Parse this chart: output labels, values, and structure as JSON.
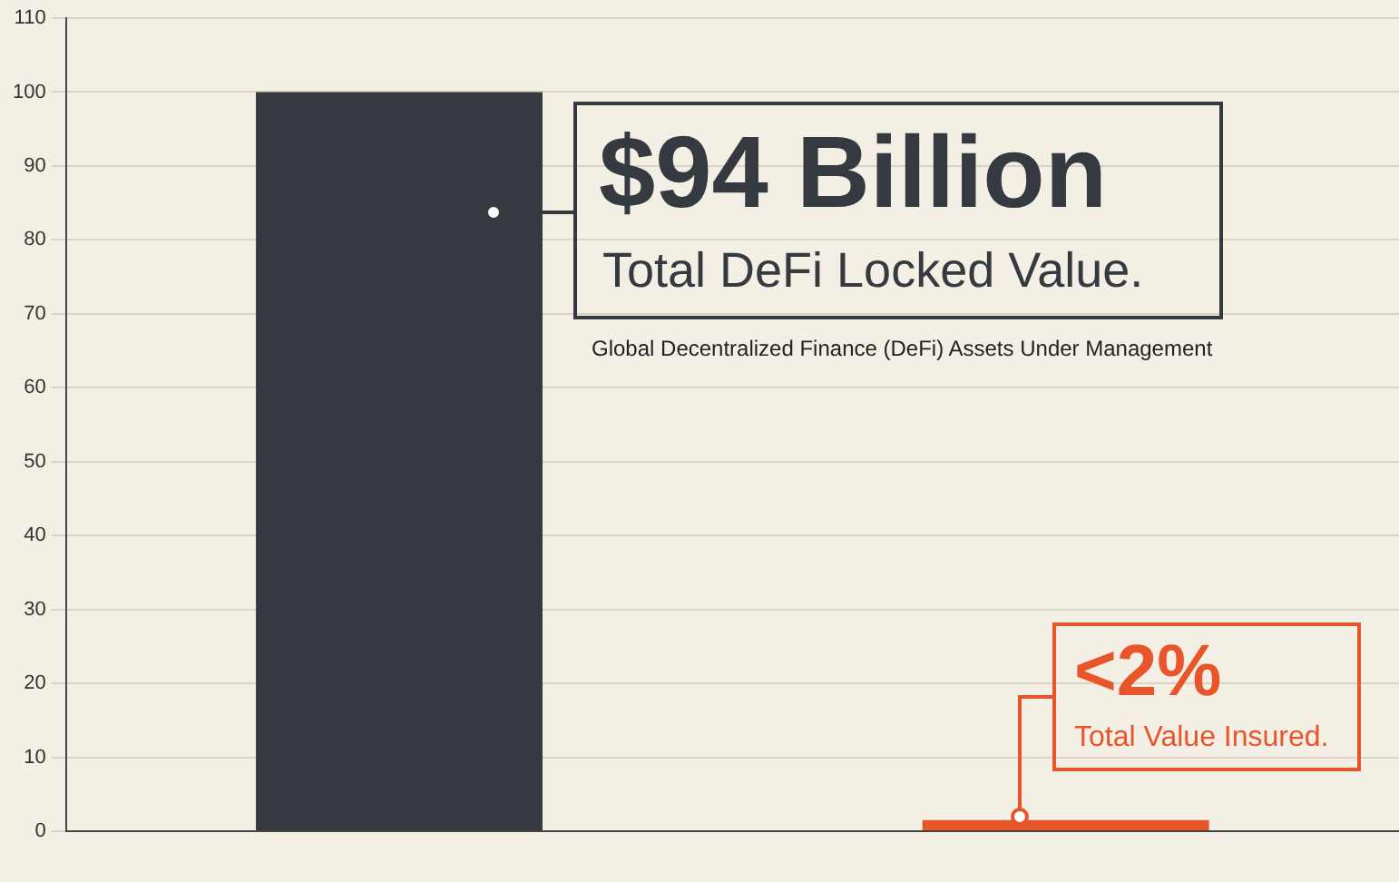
{
  "chart_data": {
    "type": "bar",
    "categories": [
      null,
      null
    ],
    "values": [
      100,
      1.5
    ],
    "colors": [
      "#353a40",
      "#e8552a"
    ],
    "ylim": [
      0,
      110
    ],
    "yticks": [
      0,
      10,
      20,
      30,
      40,
      50,
      60,
      70,
      80,
      90,
      100,
      110
    ],
    "grid": "y",
    "legend": false,
    "annotations": [
      "$94 Billion",
      "Total DeFi Locked Value.",
      "Global Decentralized Finance (DeFi) Assets Under Management",
      "<2%",
      "Total Value Insured."
    ]
  }
}
